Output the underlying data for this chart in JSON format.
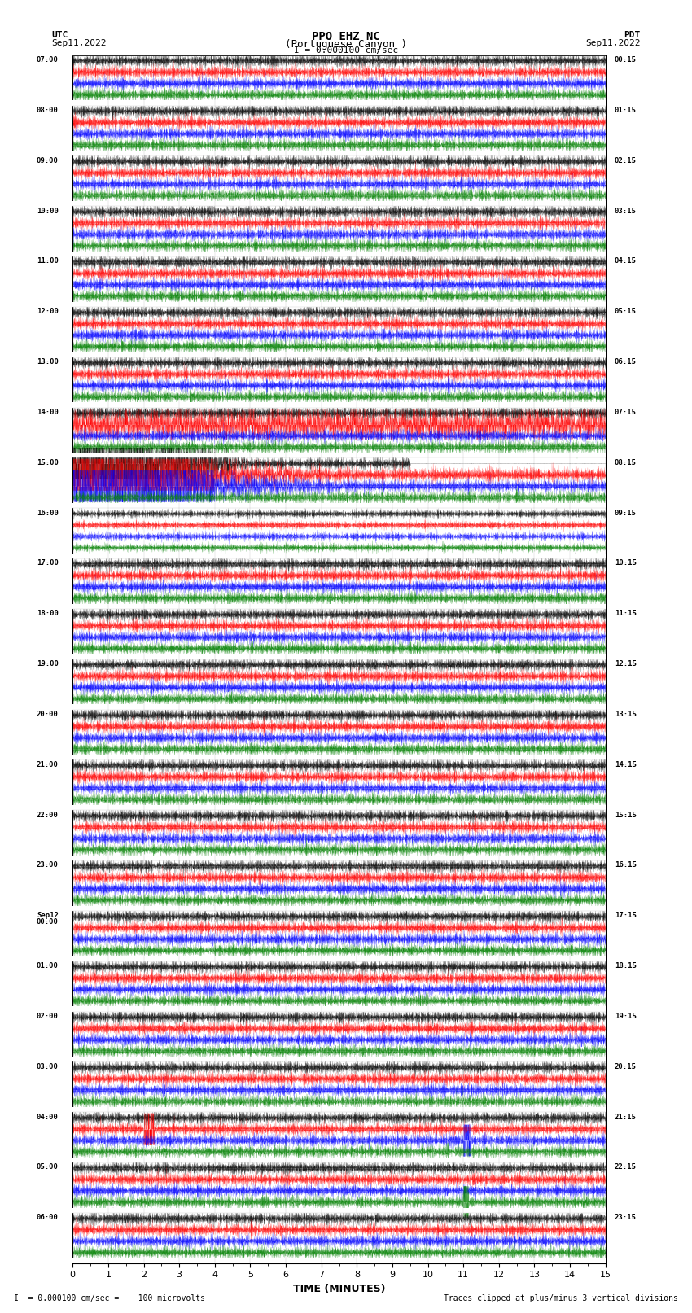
{
  "title_line1": "PPO EHZ NC",
  "title_line2": "(Portuguese Canyon )",
  "scale_label": "I = 0.000100 cm/sec",
  "utc_label": "UTC",
  "utc_date": "Sep11,2022",
  "pdt_label": "PDT",
  "pdt_date": "Sep11,2022",
  "footer_left": "= 0.000100 cm/sec =    100 microvolts",
  "footer_right": "Traces clipped at plus/minus 3 vertical divisions",
  "xlabel": "TIME (MINUTES)",
  "left_times": [
    "07:00",
    "08:00",
    "09:00",
    "10:00",
    "11:00",
    "12:00",
    "13:00",
    "14:00",
    "15:00",
    "16:00",
    "17:00",
    "18:00",
    "19:00",
    "20:00",
    "21:00",
    "22:00",
    "23:00",
    "Sep12\n00:00",
    "01:00",
    "02:00",
    "03:00",
    "04:00",
    "05:00",
    "06:00"
  ],
  "right_times": [
    "00:15",
    "01:15",
    "02:15",
    "03:15",
    "04:15",
    "05:15",
    "06:15",
    "07:15",
    "08:15",
    "09:15",
    "10:15",
    "11:15",
    "12:15",
    "13:15",
    "14:15",
    "15:15",
    "16:15",
    "17:15",
    "18:15",
    "19:15",
    "20:15",
    "21:15",
    "22:15",
    "23:15"
  ],
  "n_rows": 24,
  "traces_per_row": 4,
  "colors": [
    "black",
    "red",
    "blue",
    "green"
  ],
  "minutes": 15,
  "background": "white",
  "eq_row_utc": 8,
  "eq_row_pdt": 21,
  "eq_row_pdt2": 22
}
